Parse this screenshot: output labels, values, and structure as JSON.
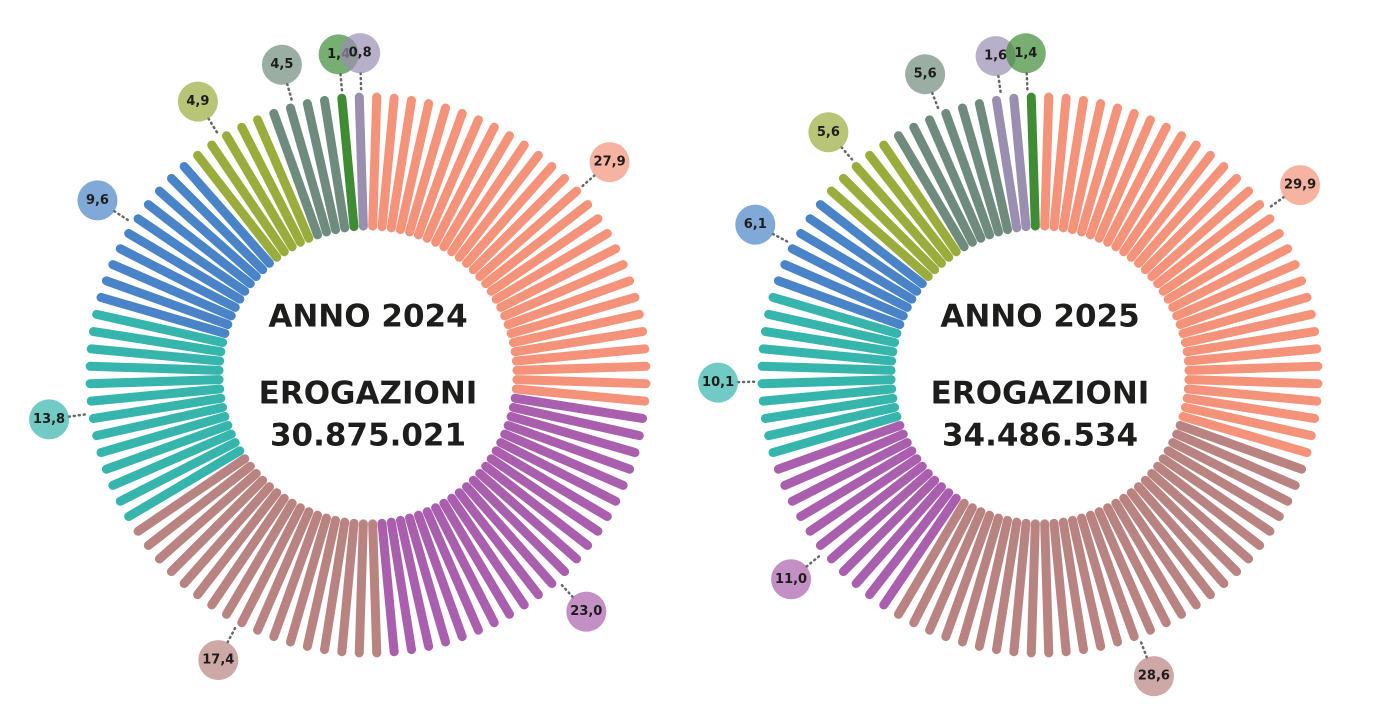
{
  "chart_data": [
    {
      "type": "pie",
      "title": "ANNO 2024",
      "subtitle": "EROGAZIONI",
      "total": "30.875.021",
      "values": [
        27.9,
        23.0,
        17.4,
        13.8,
        9.6,
        4.9,
        4.5,
        1.4,
        0.8
      ],
      "value_labels": [
        "27,9",
        "23,0",
        "17,4",
        "13,8",
        "9,6",
        "4,9",
        "4,5",
        "1,4",
        "0,8"
      ],
      "colors": [
        "#f4937a",
        "#a95fad",
        "#b98382",
        "#35b5ab",
        "#4a84c8",
        "#9aad3c",
        "#6f8b7e",
        "#3f8c34",
        "#9a8fb0"
      ]
    },
    {
      "type": "pie",
      "title": "ANNO 2025",
      "subtitle": "EROGAZIONI",
      "total": "34.486.534",
      "values": [
        29.9,
        28.6,
        11.0,
        10.1,
        6.1,
        5.6,
        5.6,
        1.6,
        1.4
      ],
      "value_labels": [
        "29,9",
        "28,6",
        "11,0",
        "10,1",
        "6,1",
        "5,6",
        "5,6",
        "1,6",
        "1,4"
      ],
      "colors": [
        "#f4937a",
        "#b98382",
        "#a95fad",
        "#35b5ab",
        "#4a84c8",
        "#9aad3c",
        "#6f8b7e",
        "#9a8fb0",
        "#3f8c34"
      ]
    }
  ]
}
